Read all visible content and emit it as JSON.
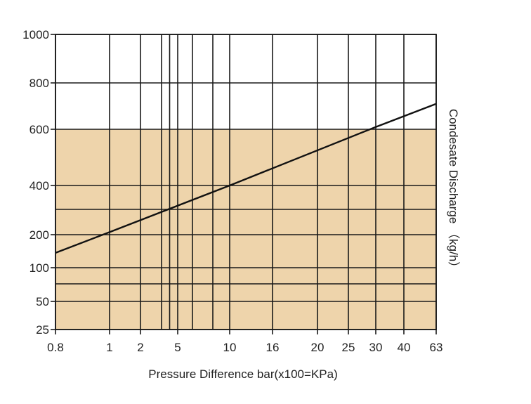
{
  "chart_data": {
    "type": "line",
    "title": "",
    "xlabel": "Pressure Difference bar(x100=KPa)",
    "ylabel": "Condesate Discharge （kg/h）",
    "x_ticks": [
      "0.8",
      "1",
      "2",
      "5",
      "10",
      "16",
      "20",
      "25",
      "30",
      "40",
      "63"
    ],
    "x_minor_ticks": [
      3,
      4,
      6,
      8
    ],
    "y_ticks": [
      "25",
      "50",
      "100",
      "200",
      "400",
      "600",
      "800",
      "1000"
    ],
    "y_minor_ticks": [
      75,
      300
    ],
    "shaded_region": {
      "y_from": 25,
      "y_to": 600,
      "color": "#eed4ab"
    },
    "grid": true,
    "series": [
      {
        "color": "#111111",
        "x": [
          0.8,
          1,
          10,
          30,
          63
        ],
        "y": [
          145,
          210,
          400,
          610,
          710
        ]
      }
    ]
  }
}
